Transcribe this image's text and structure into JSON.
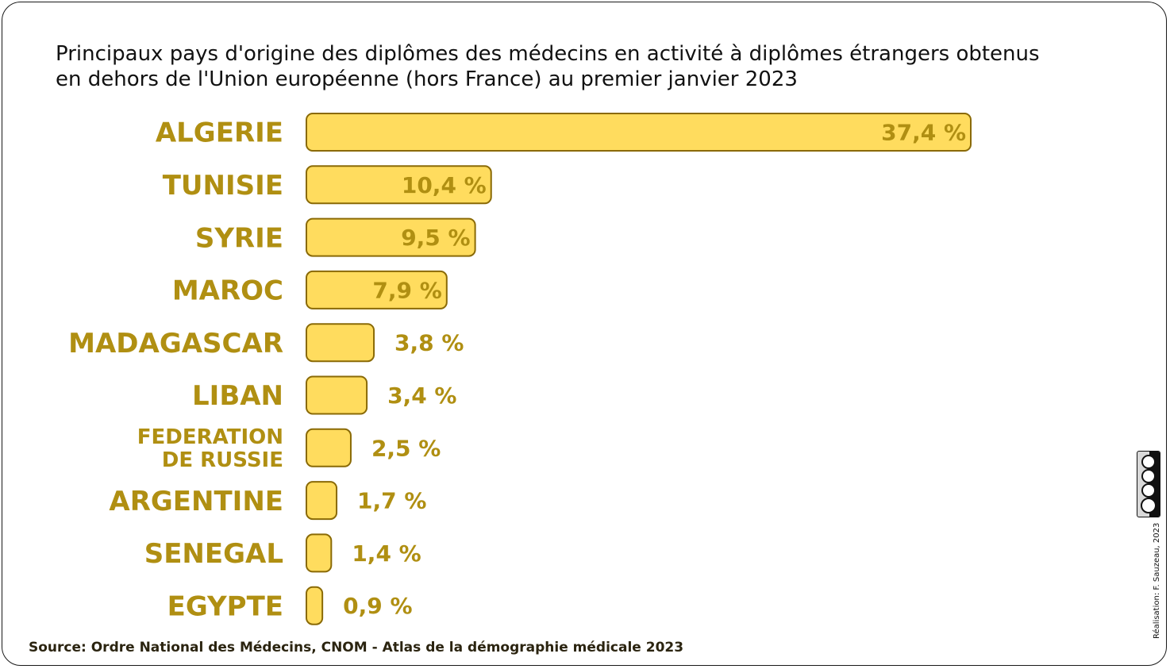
{
  "title": "Principaux pays d'origine des diplômes des médecins en activité à diplômes étrangers obtenus\nen dehors de l'Union européenne (hors France) au premier janvier 2023",
  "source": "Source: Ordre  National des Médecins, CNOM - Atlas de la démographie médicale 2023",
  "credit": "Réalisation: F. Sauzeau, 2023",
  "license_badge": {
    "icon": "cc-by-nc-sa-icon",
    "labels": [
      "BY",
      "NC",
      "SA"
    ]
  },
  "colors": {
    "bar_fill": "#ffdc5e",
    "bar_stroke": "#8a6a06",
    "label_text": "#b08f12",
    "title_text": "#111111"
  },
  "chart_data": {
    "type": "bar",
    "orientation": "horizontal",
    "title": "Principaux pays d'origine des diplômes des médecins en activité à diplômes étrangers obtenus en dehors de l'Union européenne (hors France) au premier janvier 2023",
    "categories": [
      [
        "ALGERIE"
      ],
      [
        "TUNISIE"
      ],
      [
        "SYRIE"
      ],
      [
        "MAROC"
      ],
      [
        "MADAGASCAR"
      ],
      [
        "LIBAN"
      ],
      [
        "FEDERATION",
        "DE RUSSIE"
      ],
      [
        "ARGENTINE"
      ],
      [
        "SENEGAL"
      ],
      [
        "EGYPTE"
      ]
    ],
    "values": [
      37.4,
      10.4,
      9.5,
      7.9,
      3.8,
      3.4,
      2.5,
      1.7,
      1.4,
      0.9
    ],
    "value_labels": [
      "37,4 %",
      "10,4 %",
      "9,5 %",
      "7,9 %",
      "3,8 %",
      "3,4 %",
      "2,5 %",
      "1,7 %",
      "1,4 %",
      "0,9 %"
    ],
    "unit": "%",
    "xlim": [
      0,
      37.4
    ],
    "grid": false,
    "legend": "none"
  }
}
